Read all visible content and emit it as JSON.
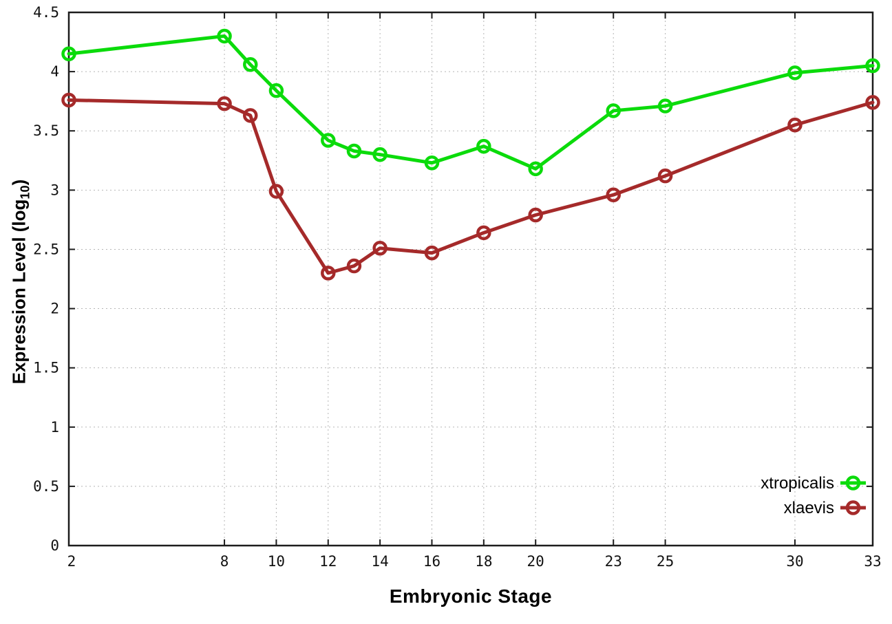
{
  "chart_data": {
    "type": "line",
    "title": "",
    "xlabel": "Embryonic Stage",
    "ylabel": {
      "main": "Expression Level (log",
      "sub": "10",
      "close": ")"
    },
    "x": [
      2,
      8,
      9,
      10,
      12,
      13,
      14,
      16,
      18,
      20,
      23,
      25,
      30,
      33
    ],
    "series": [
      {
        "name": "xtropicalis",
        "color": "#0bdb0b",
        "values": [
          4.15,
          4.3,
          4.06,
          3.84,
          3.42,
          3.33,
          3.3,
          3.23,
          3.37,
          3.18,
          3.67,
          3.71,
          3.99,
          4.05
        ]
      },
      {
        "name": "xlaevis",
        "color": "#a52a2a",
        "values": [
          3.76,
          3.73,
          3.63,
          2.99,
          2.3,
          2.36,
          2.51,
          2.47,
          2.64,
          2.79,
          2.96,
          3.12,
          3.55,
          3.74
        ]
      }
    ],
    "xlim": [
      2,
      33
    ],
    "ylim": [
      0,
      4.5
    ],
    "xticks": {
      "values": [
        2,
        8,
        10,
        12,
        14,
        16,
        18,
        20,
        23,
        25,
        30,
        33
      ],
      "labels": [
        "2",
        "8",
        "10",
        "12",
        "14",
        "16",
        "18",
        "20",
        "23",
        "25",
        "30",
        "33"
      ]
    },
    "yticks": {
      "values": [
        0,
        0.5,
        1,
        1.5,
        2,
        2.5,
        3,
        3.5,
        4,
        4.5
      ],
      "labels": [
        "0",
        "0.5",
        "1",
        "1.5",
        "2",
        "2.5",
        "3",
        "3.5",
        "4",
        "4.5"
      ]
    },
    "grid": true,
    "legend": {
      "position": "inside-right-lower",
      "entries": [
        "xtropicalis",
        "xlaevis"
      ]
    },
    "style": {
      "marker": "open-circle",
      "border_color": "#1c1c1c",
      "grid_color": "#b5b5b5",
      "background": "#ffffff"
    }
  }
}
